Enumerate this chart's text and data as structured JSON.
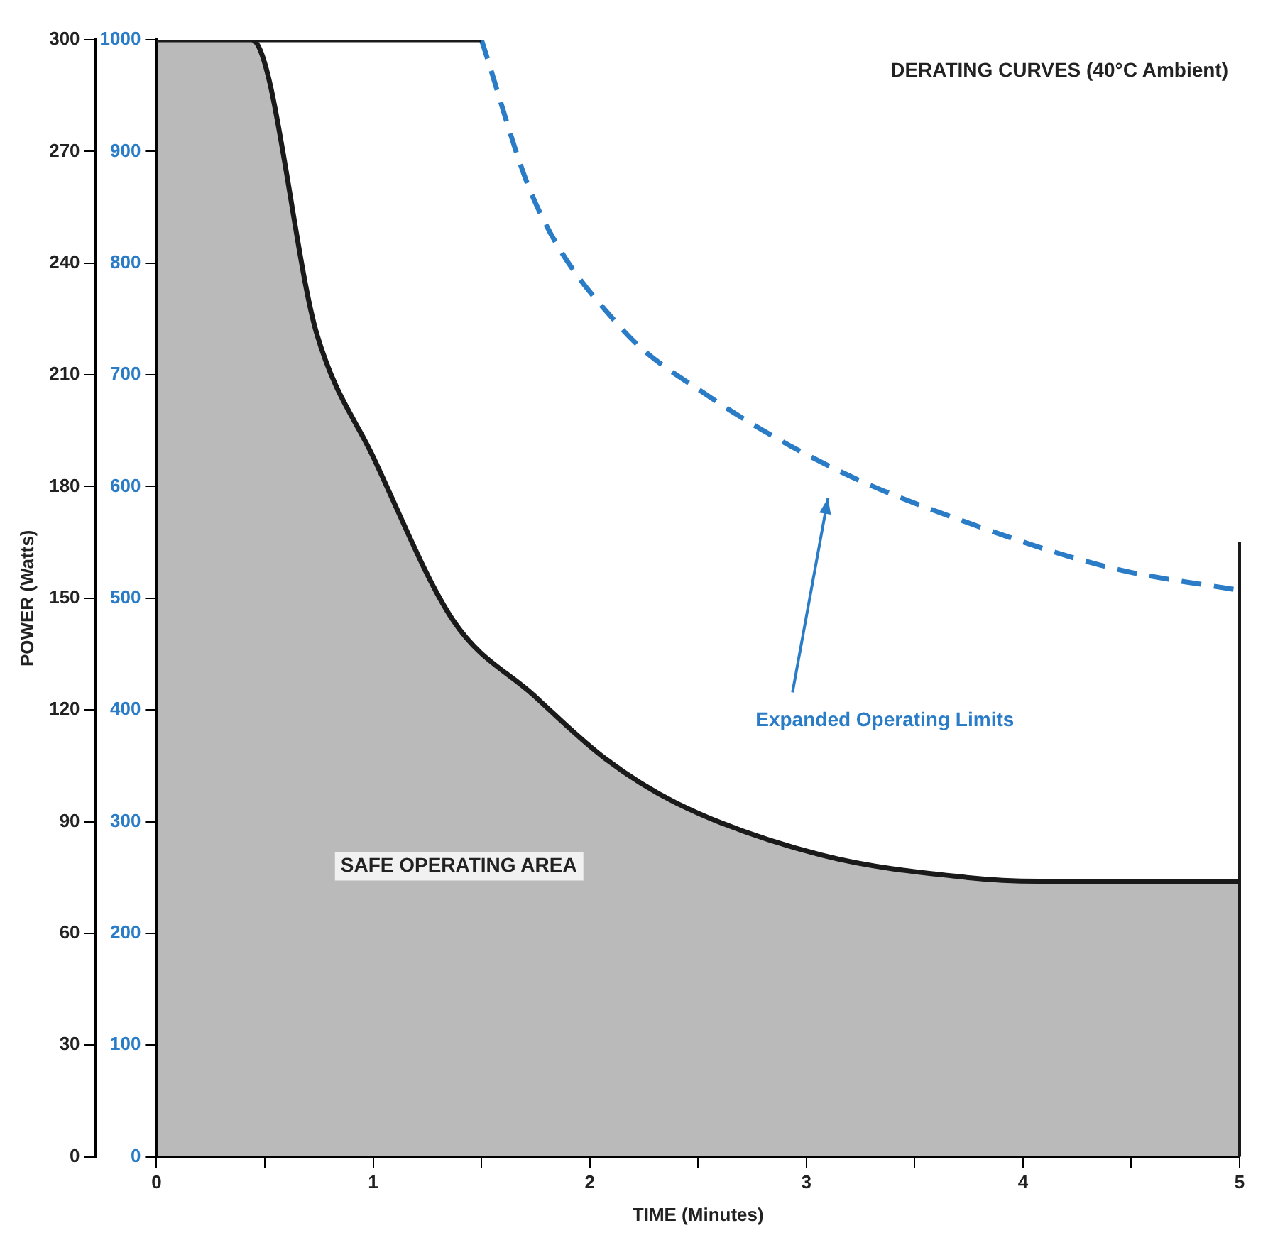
{
  "chart_data": {
    "type": "line",
    "title": "DERATING CURVES (40°C Ambient)",
    "xlabel": "TIME (Minutes)",
    "ylabel": "POWER (Watts)",
    "series": [
      {
        "type": "area",
        "color": "#1a1a1a",
        "x": [
          0,
          0.44,
          0.74,
          1.0,
          1.37,
          1.74,
          2.07,
          2.4,
          3.07,
          3.74,
          4.07,
          5
        ],
        "values": [
          300,
          300,
          221,
          188,
          144,
          124,
          107,
          95,
          81,
          75,
          74,
          74
        ]
      },
      {
        "type": "line",
        "color": "#1a1a1a",
        "x": [
          0.44,
          1.5
        ],
        "values": [
          300,
          300
        ]
      },
      {
        "type": "line",
        "color": "#2a7cc7",
        "axis": "y2",
        "line_style": "dashed",
        "x": [
          1.5,
          1.74,
          2.14,
          2.54,
          3.14,
          3.74,
          4.41,
          5
        ],
        "values": [
          1000,
          858,
          743,
          682,
          615,
          568,
          527,
          507
        ]
      }
    ],
    "xlim": [
      0,
      5
    ],
    "xticks": [
      0,
      {
        "value": 0.5,
        "label": null
      },
      1,
      {
        "value": 1.5,
        "label": null
      },
      2,
      {
        "value": 2.5,
        "label": null
      },
      3,
      {
        "value": 3.5,
        "label": null
      },
      4,
      {
        "value": 4.5,
        "label": null
      },
      5
    ],
    "ylim": [
      0,
      300
    ],
    "yticks": [
      0,
      30,
      60,
      90,
      120,
      150,
      180,
      210,
      240,
      270,
      300
    ],
    "y2lim": [
      0,
      1000
    ],
    "y2ticks": [
      0,
      100,
      200,
      300,
      400,
      500,
      600,
      700,
      800,
      900,
      1000
    ],
    "ref_lines": [
      {
        "axis": "x",
        "value": 5,
        "color": "#1a1a1a"
      }
    ],
    "annotations": [
      "SAFE OPERATING AREA",
      "Expanded Operating Limits"
    ],
    "grid": false,
    "legend": false,
    "marker": "none"
  }
}
